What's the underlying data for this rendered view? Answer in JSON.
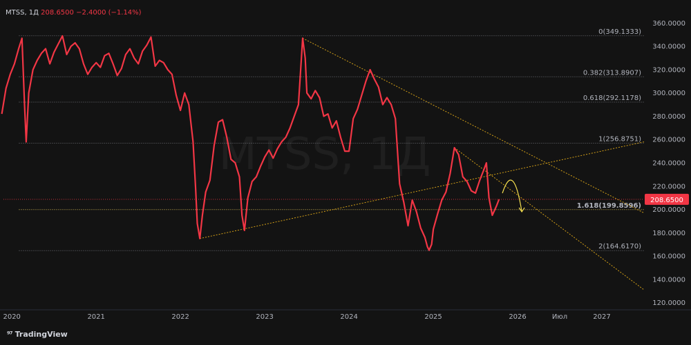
{
  "header": {
    "symbol": "MTSS",
    "interval": "1Д",
    "price": "208.6500",
    "change": "−2.4000 (−1.14%)"
  },
  "watermark": "MTSS, 1Д",
  "brand": "TradingView",
  "colors": {
    "background": "#131313",
    "price_line": "#f23645",
    "trend_line": "#d4a017",
    "fib_line": "#9598a1",
    "axis_text": "#b2b5be",
    "highlight_fib": "#f0d060"
  },
  "chart_data": {
    "type": "line",
    "title": "",
    "xlabel": "",
    "ylabel": "",
    "ylim": [
      115,
      365
    ],
    "xlim": [
      2019.9,
      2027.5
    ],
    "grid": false,
    "x_ticks": [
      {
        "label": "2020",
        "x": 2020.0
      },
      {
        "label": "2021",
        "x": 2021.0
      },
      {
        "label": "2022",
        "x": 2022.0
      },
      {
        "label": "2023",
        "x": 2023.0
      },
      {
        "label": "2024",
        "x": 2024.0
      },
      {
        "label": "2025",
        "x": 2025.0
      },
      {
        "label": "2026",
        "x": 2026.0
      },
      {
        "label": "Июл",
        "x": 2026.5
      },
      {
        "label": "2027",
        "x": 2027.0
      }
    ],
    "y_ticks": [
      "360.0000",
      "340.0000",
      "320.0000",
      "300.0000",
      "280.0000",
      "260.0000",
      "240.0000",
      "220.0000",
      "200.0000",
      "180.0000",
      "160.0000",
      "140.0000",
      "120.0000"
    ],
    "y_tick_values": [
      360,
      340,
      320,
      300,
      280,
      260,
      240,
      220,
      200,
      180,
      160,
      140,
      120
    ],
    "last_price": {
      "label": "208.6500",
      "value": 208.65
    },
    "series": [
      {
        "values": [
          [
            2019.88,
            282
          ],
          [
            2019.93,
            304
          ],
          [
            2019.98,
            316
          ],
          [
            2020.03,
            325
          ],
          [
            2020.08,
            338
          ],
          [
            2020.12,
            347
          ],
          [
            2020.15,
            290
          ],
          [
            2020.17,
            258
          ],
          [
            2020.2,
            300
          ],
          [
            2020.25,
            320
          ],
          [
            2020.3,
            328
          ],
          [
            2020.35,
            334
          ],
          [
            2020.4,
            338
          ],
          [
            2020.45,
            325
          ],
          [
            2020.5,
            335
          ],
          [
            2020.55,
            342
          ],
          [
            2020.6,
            349
          ],
          [
            2020.65,
            333
          ],
          [
            2020.7,
            340
          ],
          [
            2020.75,
            343
          ],
          [
            2020.8,
            338
          ],
          [
            2020.85,
            325
          ],
          [
            2020.9,
            316
          ],
          [
            2020.95,
            322
          ],
          [
            2021.0,
            326
          ],
          [
            2021.05,
            322
          ],
          [
            2021.1,
            332
          ],
          [
            2021.15,
            334
          ],
          [
            2021.2,
            325
          ],
          [
            2021.25,
            315
          ],
          [
            2021.3,
            321
          ],
          [
            2021.35,
            333
          ],
          [
            2021.4,
            338
          ],
          [
            2021.45,
            330
          ],
          [
            2021.5,
            325
          ],
          [
            2021.55,
            336
          ],
          [
            2021.6,
            341
          ],
          [
            2021.65,
            348
          ],
          [
            2021.7,
            323
          ],
          [
            2021.75,
            328
          ],
          [
            2021.8,
            326
          ],
          [
            2021.85,
            320
          ],
          [
            2021.9,
            316
          ],
          [
            2021.95,
            298
          ],
          [
            2022.0,
            285
          ],
          [
            2022.05,
            300
          ],
          [
            2022.1,
            290
          ],
          [
            2022.15,
            258
          ],
          [
            2022.18,
            218
          ],
          [
            2022.2,
            188
          ],
          [
            2022.23,
            175
          ],
          [
            2022.26,
            195
          ],
          [
            2022.3,
            215
          ],
          [
            2022.35,
            225
          ],
          [
            2022.4,
            255
          ],
          [
            2022.45,
            275
          ],
          [
            2022.5,
            277
          ],
          [
            2022.55,
            262
          ],
          [
            2022.6,
            243
          ],
          [
            2022.65,
            240
          ],
          [
            2022.7,
            228
          ],
          [
            2022.73,
            195
          ],
          [
            2022.76,
            182
          ],
          [
            2022.8,
            210
          ],
          [
            2022.85,
            224
          ],
          [
            2022.9,
            228
          ],
          [
            2022.95,
            237
          ],
          [
            2023.0,
            245
          ],
          [
            2023.05,
            251
          ],
          [
            2023.1,
            244
          ],
          [
            2023.15,
            252
          ],
          [
            2023.2,
            258
          ],
          [
            2023.25,
            262
          ],
          [
            2023.3,
            270
          ],
          [
            2023.35,
            280
          ],
          [
            2023.4,
            290
          ],
          [
            2023.45,
            347
          ],
          [
            2023.48,
            330
          ],
          [
            2023.5,
            300
          ],
          [
            2023.55,
            295
          ],
          [
            2023.6,
            302
          ],
          [
            2023.65,
            296
          ],
          [
            2023.7,
            280
          ],
          [
            2023.75,
            282
          ],
          [
            2023.8,
            270
          ],
          [
            2023.85,
            276
          ],
          [
            2023.9,
            262
          ],
          [
            2023.95,
            250
          ],
          [
            2024.0,
            250
          ],
          [
            2024.05,
            278
          ],
          [
            2024.1,
            286
          ],
          [
            2024.15,
            298
          ],
          [
            2024.2,
            310
          ],
          [
            2024.25,
            320
          ],
          [
            2024.3,
            312
          ],
          [
            2024.35,
            305
          ],
          [
            2024.4,
            290
          ],
          [
            2024.45,
            296
          ],
          [
            2024.5,
            290
          ],
          [
            2024.55,
            278
          ],
          [
            2024.6,
            222
          ],
          [
            2024.65,
            206
          ],
          [
            2024.7,
            186
          ],
          [
            2024.75,
            208
          ],
          [
            2024.8,
            198
          ],
          [
            2024.85,
            184
          ],
          [
            2024.9,
            176
          ],
          [
            2024.93,
            168
          ],
          [
            2024.95,
            165
          ],
          [
            2024.98,
            170
          ],
          [
            2025.0,
            183
          ],
          [
            2025.05,
            196
          ],
          [
            2025.1,
            208
          ],
          [
            2025.15,
            215
          ],
          [
            2025.2,
            231
          ],
          [
            2025.25,
            253
          ],
          [
            2025.3,
            247
          ],
          [
            2025.35,
            228
          ],
          [
            2025.4,
            224
          ],
          [
            2025.45,
            216
          ],
          [
            2025.5,
            214
          ],
          [
            2025.55,
            225
          ],
          [
            2025.6,
            234
          ],
          [
            2025.63,
            240
          ],
          [
            2025.66,
            210
          ],
          [
            2025.7,
            195
          ],
          [
            2025.75,
            203
          ],
          [
            2025.78,
            208.65
          ]
        ]
      }
    ],
    "fib_levels": [
      {
        "label": "0(349.1333)",
        "value": 349.1333
      },
      {
        "label": "0.382(313.8907)",
        "value": 313.8907
      },
      {
        "label": "0.618(292.1178)",
        "value": 292.1178
      },
      {
        "label": "1(256.8751)",
        "value": 256.8751
      },
      {
        "label": "1.618(199.8596)",
        "value": 199.8596
      },
      {
        "label": "2(164.6170)",
        "value": 164.617
      }
    ],
    "fib_range_x": [
      2020.15,
      2025.78
    ],
    "trend_lines": [
      {
        "from": [
          2022.23,
          175
        ],
        "to": [
          2027.5,
          258
        ]
      },
      {
        "from": [
          2023.45,
          347
        ],
        "to": [
          2027.5,
          197
        ]
      },
      {
        "from": [
          2025.25,
          253
        ],
        "to": [
          2027.5,
          131
        ]
      }
    ],
    "projection_arrow": {
      "from": [
        2025.82,
        214
      ],
      "via": [
        2025.95,
        232
      ],
      "to": [
        2026.05,
        198
      ]
    }
  }
}
